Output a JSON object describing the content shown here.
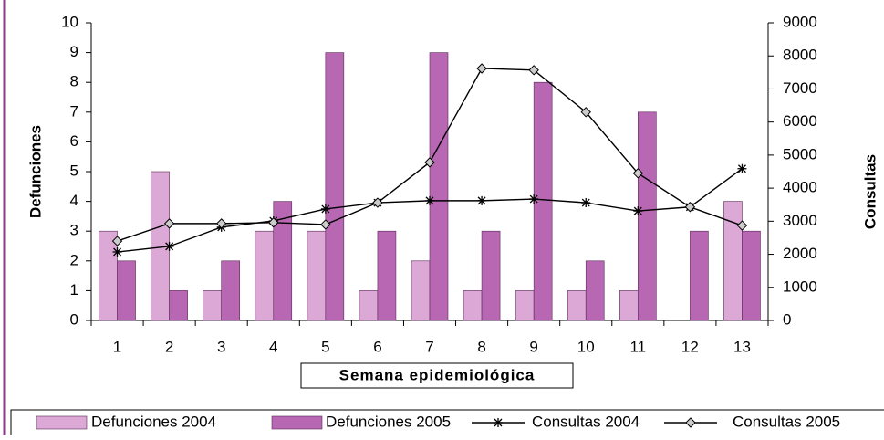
{
  "chart_data": {
    "type": "bar",
    "categories": [
      "1",
      "2",
      "3",
      "4",
      "5",
      "6",
      "7",
      "8",
      "9",
      "10",
      "11",
      "12",
      "13"
    ],
    "x_label": "Semana epidemiológica",
    "y_label": "Defunciones",
    "y2_label": "Consultas",
    "ylim": [
      0,
      10
    ],
    "yticks": [
      0,
      1,
      2,
      3,
      4,
      5,
      6,
      7,
      8,
      9,
      10
    ],
    "y2lim": [
      0,
      9000
    ],
    "y2ticks": [
      0,
      1000,
      2000,
      3000,
      4000,
      5000,
      6000,
      7000,
      8000,
      9000
    ],
    "legend": "bottom",
    "series": [
      {
        "name": "Defunciones 2004",
        "type": "bar",
        "color": "#dca8d6",
        "values": [
          3,
          5,
          1,
          3,
          3,
          1,
          2,
          1,
          1,
          1,
          1,
          0,
          4
        ]
      },
      {
        "name": "Defunciones 2005",
        "type": "bar",
        "color": "#b867b3",
        "values": [
          2,
          1,
          2,
          4,
          9,
          3,
          9,
          3,
          8,
          2,
          7,
          3,
          3
        ]
      },
      {
        "name": "Consultas 2004",
        "type": "line",
        "marker": "star",
        "color": "#000000",
        "axis": "y2",
        "values": [
          2070,
          2240,
          2820,
          3010,
          3370,
          3560,
          3620,
          3620,
          3670,
          3560,
          3310,
          3430,
          4590
        ]
      },
      {
        "name": "Consultas 2005",
        "type": "line",
        "marker": "diamond",
        "color": "#000000",
        "axis": "y2",
        "values": [
          2400,
          2930,
          2930,
          2960,
          2900,
          3560,
          4780,
          7620,
          7570,
          6300,
          4450,
          3430,
          2870
        ]
      }
    ]
  }
}
